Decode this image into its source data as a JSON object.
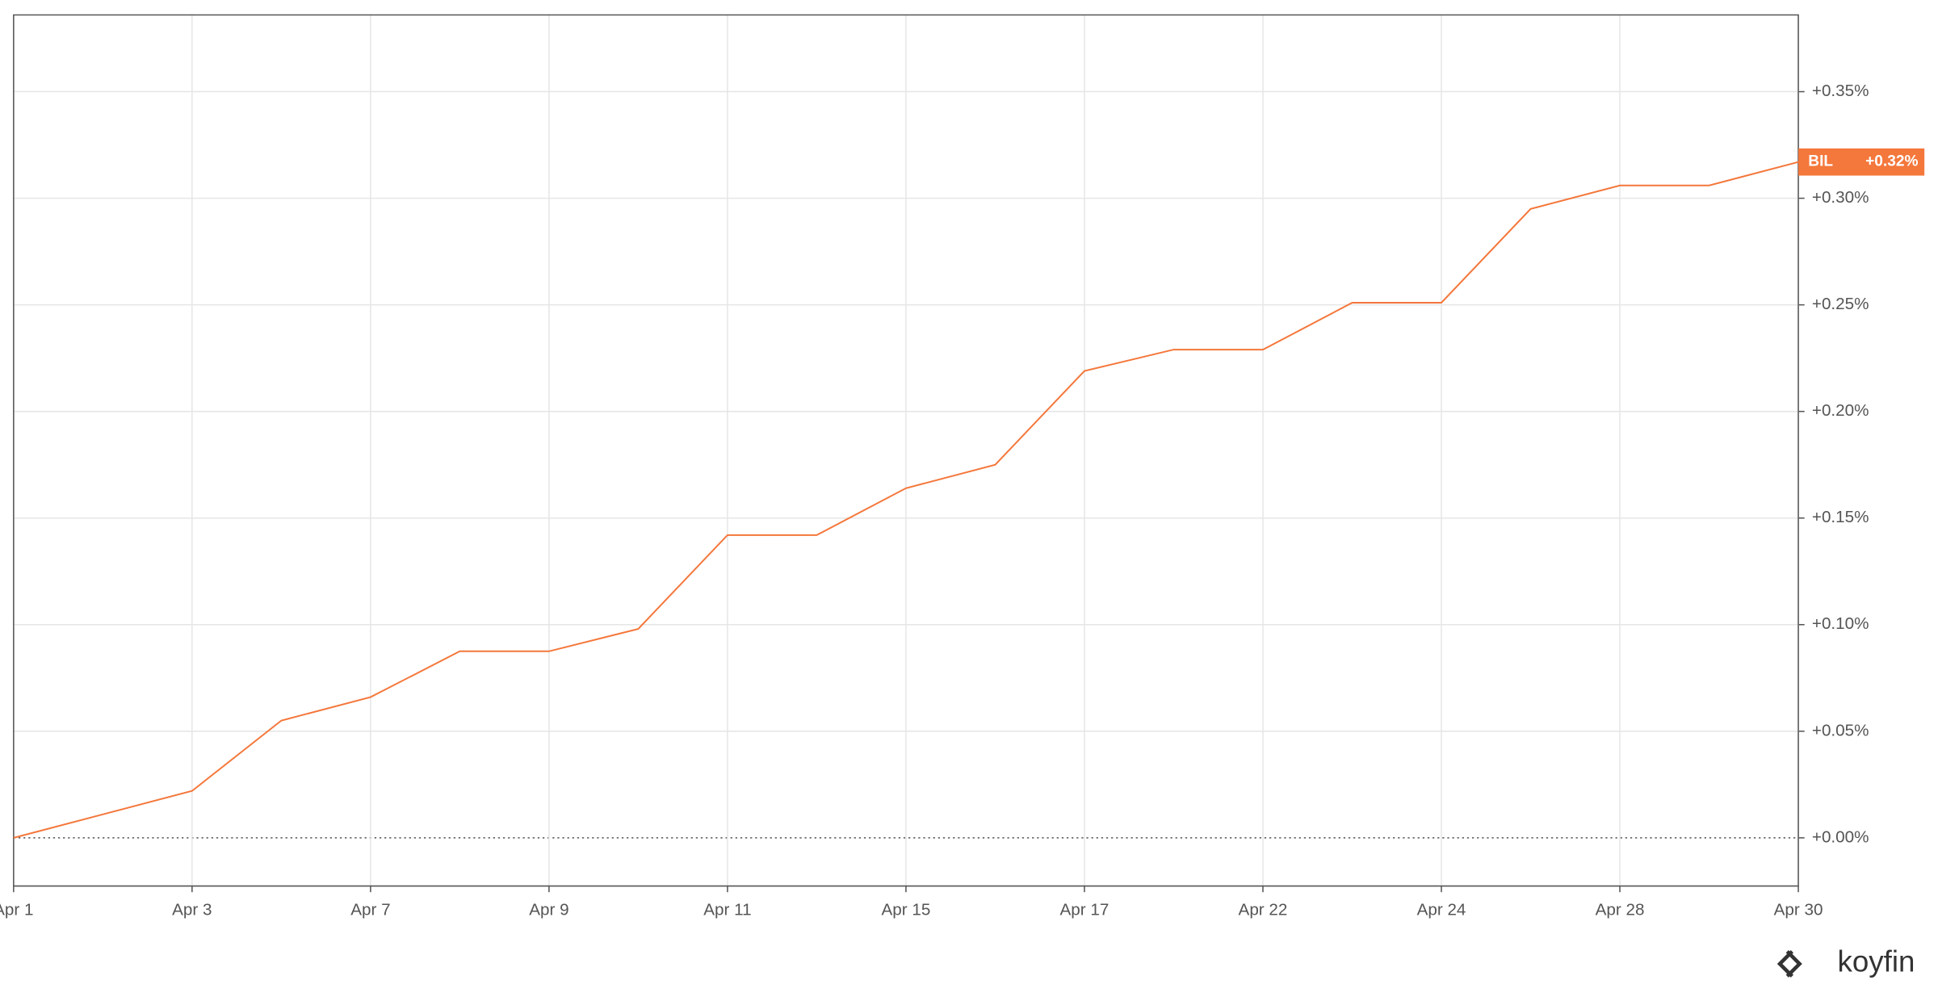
{
  "chart_data": {
    "type": "line",
    "categories": [
      "Apr 1",
      null,
      "Apr 3",
      null,
      "Apr 7",
      null,
      "Apr 9",
      null,
      "Apr 11",
      null,
      "Apr 15",
      null,
      "Apr 17",
      null,
      "Apr 22",
      null,
      "Apr 24",
      null,
      "Apr 28",
      null,
      "Apr 30"
    ],
    "series": [
      {
        "name": "BIL",
        "color": "#f4773b",
        "values": [
          0,
          0.011,
          0.022,
          0.055,
          0.066,
          0.0875,
          0.0875,
          0.098,
          0.142,
          0.142,
          0.164,
          0.175,
          0.219,
          0.229,
          0.229,
          0.251,
          0.251,
          0.295,
          0.306,
          0.306,
          0.317
        ],
        "end_label": "+0.32%"
      }
    ],
    "ylim": [
      -0.0226,
      0.386
    ],
    "yticks": [
      {
        "value": 0,
        "label": "+0.00%"
      },
      {
        "value": 0.05,
        "label": "+0.05%"
      },
      {
        "value": 0.1,
        "label": "+0.10%"
      },
      {
        "value": 0.15,
        "label": "+0.15%"
      },
      {
        "value": 0.2,
        "label": "+0.20%"
      },
      {
        "value": 0.25,
        "label": "+0.25%"
      },
      {
        "value": 0.3,
        "label": "+0.30%"
      },
      {
        "value": 0.35,
        "label": "+0.35%"
      }
    ],
    "grid": true,
    "brand": "koyfin"
  }
}
